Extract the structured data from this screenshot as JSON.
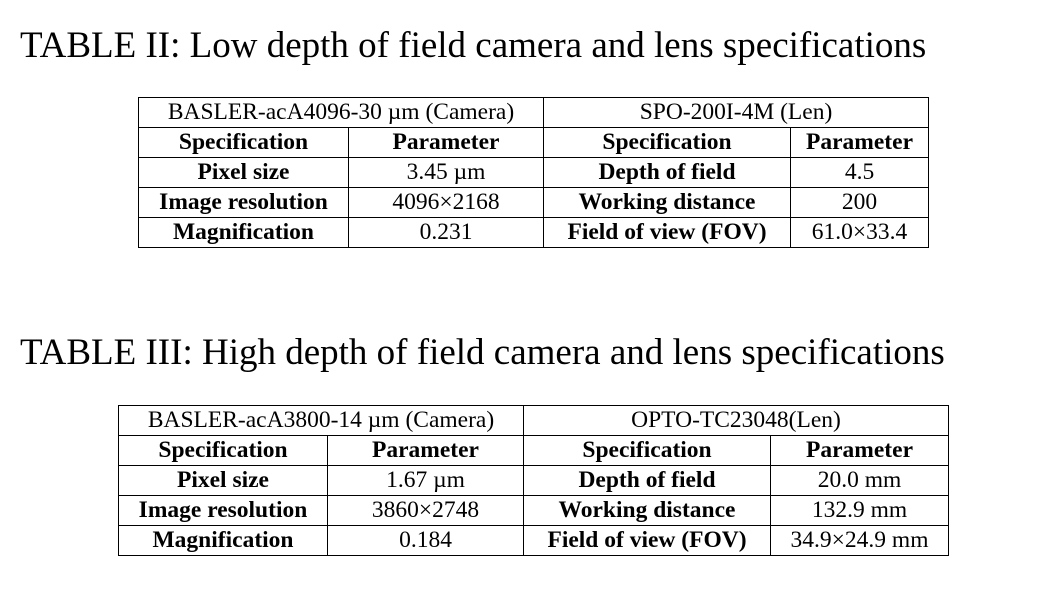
{
  "tables": [
    {
      "title": "TABLE II: Low depth of field camera and lens specifications",
      "groups": [
        "BASLER-acA4096-30 µm (Camera)",
        "SPO-200I-4M (Len)"
      ],
      "header": [
        "Specification",
        "Parameter",
        "Specification",
        "Parameter"
      ],
      "rows": [
        [
          "Pixel size",
          "3.45 µm",
          "Depth of field",
          "4.5"
        ],
        [
          "Image resolution",
          "4096×2168",
          "Working distance",
          "200"
        ],
        [
          "Magnification",
          "0.231",
          "Field of view (FOV)",
          "61.0×33.4"
        ]
      ]
    },
    {
      "title": "TABLE III: High depth of field camera and lens specifications",
      "groups": [
        "BASLER-acA3800-14 µm (Camera)",
        "OPTO-TC23048(Len)"
      ],
      "header": [
        "Specification",
        "Parameter",
        "Specification",
        "Parameter"
      ],
      "rows": [
        [
          "Pixel size",
          "1.67 µm",
          "Depth of field",
          "20.0 mm"
        ],
        [
          "Image resolution",
          "3860×2748",
          "Working distance",
          "132.9 mm"
        ],
        [
          "Magnification",
          "0.184",
          "Field of view (FOV)",
          "34.9×24.9 mm"
        ]
      ]
    }
  ]
}
